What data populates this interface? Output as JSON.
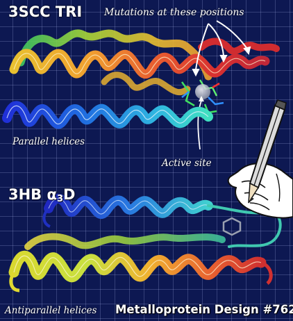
{
  "titles": {
    "top_protein": "3SCC TRI",
    "bottom_protein_prefix": "3HB α",
    "bottom_protein_sub": "3",
    "bottom_protein_suffix": "D"
  },
  "annotations": {
    "mutations": "Mutations at these positions",
    "parallel": "Parallel helices",
    "active_site": "Active site",
    "antiparallel": "Antiparallel helices"
  },
  "footer": {
    "title": "Metalloprotein Design #762"
  },
  "colors": {
    "background": "#0d1852",
    "grid": "#bec8ff",
    "rainbow": [
      "#1a2bd8",
      "#1f8fe0",
      "#2fd6c8",
      "#7be04a",
      "#e8e030",
      "#f09030",
      "#e03828"
    ]
  },
  "icons": [
    "pencil-icon",
    "drawing-hand-icon",
    "metal-ion-sphere",
    "side-chain-sticks"
  ]
}
